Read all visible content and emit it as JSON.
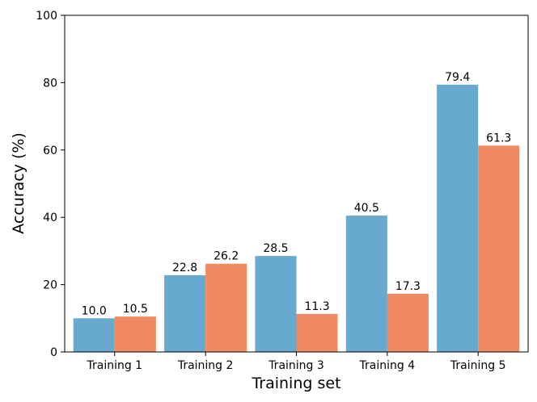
{
  "chart_data": {
    "type": "bar",
    "title": "",
    "xlabel": "Training set",
    "ylabel": "Accuracy (%)",
    "categories": [
      "Training 1",
      "Training 2",
      "Training 3",
      "Training 4",
      "Training 5"
    ],
    "series": [
      {
        "values": [
          10.0,
          22.8,
          28.5,
          40.5,
          79.4
        ],
        "color": "#67a9cf"
      },
      {
        "values": [
          10.5,
          26.2,
          11.3,
          17.3,
          61.3
        ],
        "color": "#ef8a62"
      }
    ],
    "data_labels": [
      [
        "10.0",
        "22.8",
        "28.5",
        "40.5",
        "79.4"
      ],
      [
        "10.5",
        "26.2",
        "11.3",
        "17.3",
        "61.3"
      ]
    ],
    "ylim": [
      0,
      100
    ],
    "yticks": [
      0,
      20,
      40,
      60,
      80,
      100
    ],
    "ytick_labels": [
      "0",
      "20",
      "40",
      "60",
      "80",
      "100"
    ],
    "grid": false,
    "legend": "none"
  }
}
